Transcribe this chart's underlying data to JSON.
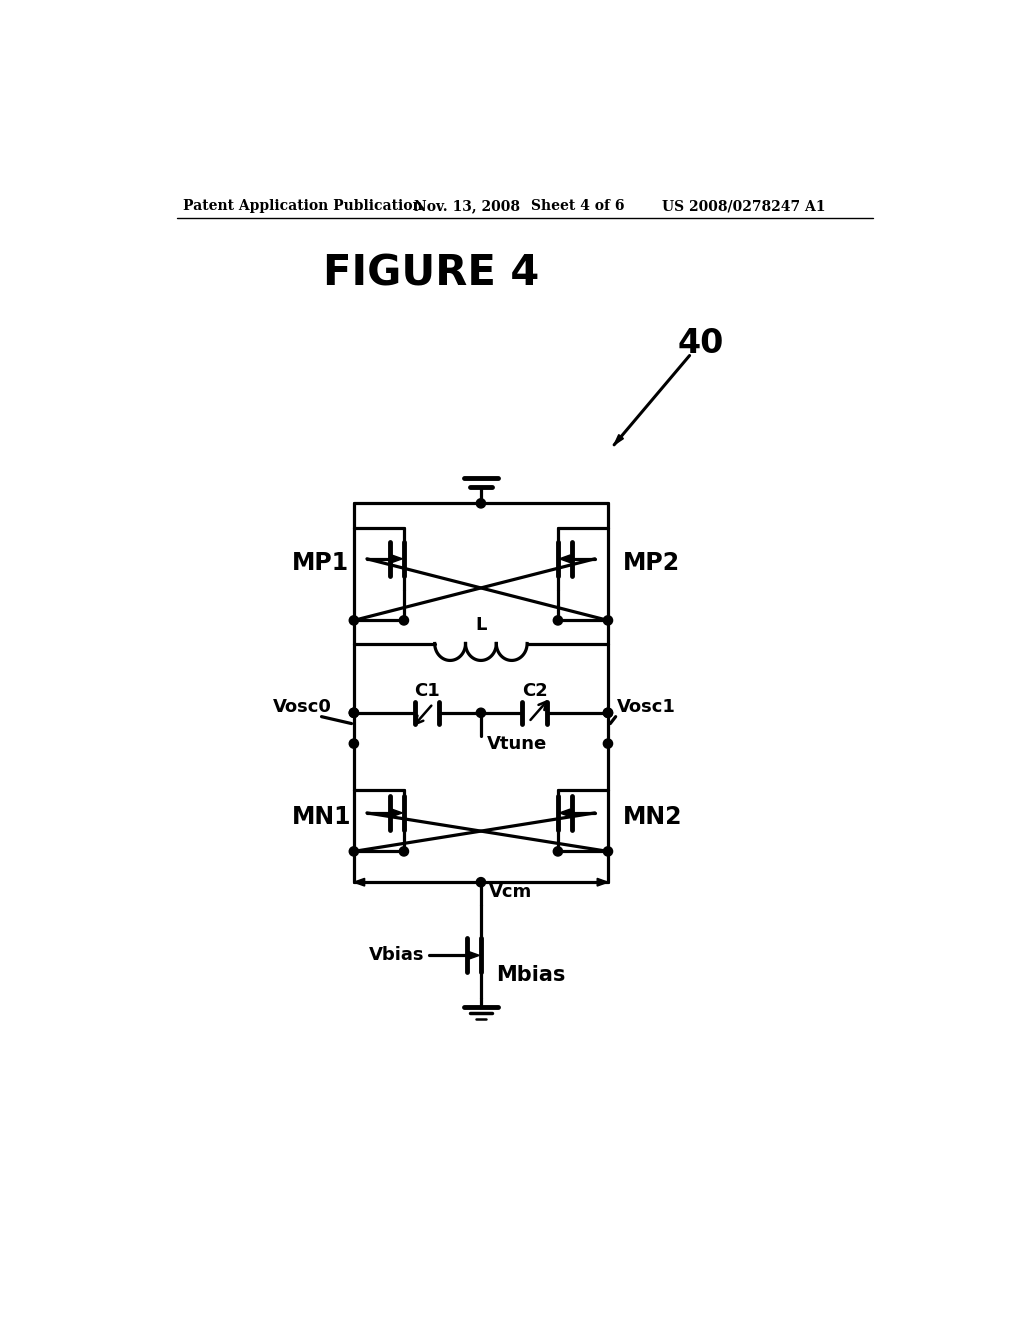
{
  "bg_color": "#ffffff",
  "line_color": "#000000",
  "header_text": "Patent Application Publication",
  "header_date": "Nov. 13, 2008",
  "header_sheet": "Sheet 4 of 6",
  "header_patent": "US 2008/0278247 A1",
  "figure_title": "FIGURE 4",
  "label_40": "40",
  "label_MP1": "MP1",
  "label_MP2": "MP2",
  "label_MN1": "MN1",
  "label_MN2": "MN2",
  "label_Vosc0": "Vosc0",
  "label_Vosc1": "Vosc1",
  "label_L": "L",
  "label_C1": "C1",
  "label_C2": "C2",
  "label_Vtune": "Vtune",
  "label_Vcm": "Vcm",
  "label_Vbias": "Vbias",
  "label_Mbias": "Mbias"
}
